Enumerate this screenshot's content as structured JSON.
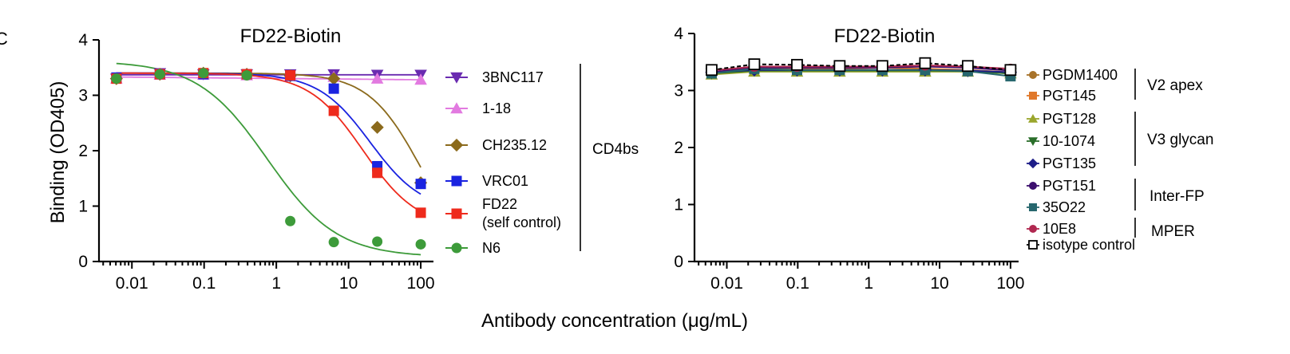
{
  "figure": {
    "panel_letter": "C",
    "shared_xlabel": "Antibody concentration (μg/mL)"
  },
  "chart_data": [
    {
      "type": "line",
      "title": "FD22-Biotin",
      "xlabel": "Antibody concentration (μg/mL)",
      "ylabel": "Binding (OD405)",
      "xscale": "log",
      "xlim": [
        0.0035,
        150
      ],
      "ylim": [
        0,
        4
      ],
      "xticks": [
        0.01,
        0.1,
        1,
        10,
        100
      ],
      "xtick_labels": [
        "0.01",
        "0.1",
        "1",
        "10",
        "100"
      ],
      "yticks": [
        0,
        1,
        2,
        3,
        4
      ],
      "ytick_labels": [
        "0",
        "1",
        "2",
        "3",
        "4"
      ],
      "x": [
        0.0061,
        0.0244,
        0.0977,
        0.39,
        1.56,
        6.25,
        25,
        100
      ],
      "legend_position": "right",
      "series": [
        {
          "name": "3BNC117",
          "color": "#6a2bb0",
          "marker": "triangle-down",
          "values": [
            3.3,
            3.4,
            3.38,
            3.38,
            3.38,
            3.38,
            3.37,
            3.37
          ],
          "fit": {
            "kind": "flat",
            "value": 3.37
          }
        },
        {
          "name": "1-18",
          "color": "#e27ae0",
          "marker": "triangle-up",
          "values": [
            3.3,
            3.37,
            3.37,
            3.36,
            3.35,
            3.33,
            3.3,
            3.28
          ],
          "fit": {
            "kind": "linear-log",
            "start": 3.33,
            "end": 3.28
          }
        },
        {
          "name": "CH235.12",
          "color": "#8b6a1c",
          "marker": "diamond",
          "values": [
            3.3,
            3.38,
            3.4,
            3.38,
            3.35,
            3.3,
            2.42,
            1.42
          ],
          "fit": {
            "kind": "hill",
            "top": 3.4,
            "bottom": 0,
            "ec50": 100,
            "hill": 1.2
          }
        },
        {
          "name": "VRC01",
          "color": "#1a23e0",
          "marker": "square",
          "values": [
            3.32,
            3.38,
            3.38,
            3.38,
            3.35,
            3.12,
            1.72,
            1.4
          ],
          "fit": {
            "kind": "hill",
            "top": 3.4,
            "bottom": 0.9,
            "ec50": 20,
            "hill": 1.2
          }
        },
        {
          "name": "FD22\n(self control)",
          "color": "#ee2a1c",
          "marker": "square",
          "values": [
            3.3,
            3.38,
            3.4,
            3.38,
            3.36,
            2.72,
            1.6,
            0.88
          ],
          "fit": {
            "kind": "hill",
            "top": 3.4,
            "bottom": 0.6,
            "ec50": 16,
            "hill": 1.15
          }
        },
        {
          "name": "N6",
          "color": "#3d9b3a",
          "marker": "circle",
          "values": [
            3.3,
            3.38,
            3.4,
            3.36,
            0.73,
            0.35,
            0.36,
            0.31
          ],
          "fit": {
            "kind": "hill",
            "top": 3.62,
            "bottom": 0.08,
            "ec50": 0.75,
            "hill": 0.9
          }
        }
      ],
      "groups": [
        {
          "label": "CD4bs",
          "members": [
            "3BNC117",
            "1-18",
            "CH235.12",
            "VRC01",
            "FD22\n(self control)",
            "N6"
          ]
        }
      ]
    },
    {
      "type": "line",
      "title": "FD22-Biotin",
      "xlabel": "Antibody concentration (μg/mL)",
      "ylabel": "",
      "xscale": "log",
      "xlim": [
        0.0035,
        130
      ],
      "ylim": [
        0,
        4
      ],
      "xticks": [
        0.01,
        0.1,
        1,
        10,
        100
      ],
      "xtick_labels": [
        "0.01",
        "0.1",
        "1",
        "10",
        "100"
      ],
      "yticks": [
        0,
        1,
        2,
        3,
        4
      ],
      "ytick_labels": [
        "0",
        "1",
        "2",
        "3",
        "4"
      ],
      "x": [
        0.0061,
        0.0244,
        0.0977,
        0.39,
        1.56,
        6.25,
        25,
        100
      ],
      "legend_position": "right",
      "series": [
        {
          "name": "PGDM1400",
          "color": "#a8732a",
          "marker": "circle",
          "values": [
            3.3,
            3.36,
            3.35,
            3.35,
            3.36,
            3.36,
            3.34,
            3.3
          ]
        },
        {
          "name": "PGT145",
          "color": "#e0782a",
          "marker": "square",
          "values": [
            3.3,
            3.4,
            3.38,
            3.38,
            3.4,
            3.38,
            3.36,
            3.32
          ]
        },
        {
          "name": "PGT128",
          "color": "#9aa62c",
          "marker": "triangle-up",
          "values": [
            3.28,
            3.33,
            3.33,
            3.33,
            3.33,
            3.33,
            3.33,
            3.3
          ]
        },
        {
          "name": "10-1074",
          "color": "#2a6e2a",
          "marker": "triangle-down",
          "values": [
            3.3,
            3.35,
            3.35,
            3.35,
            3.35,
            3.35,
            3.34,
            3.3
          ]
        },
        {
          "name": "PGT135",
          "color": "#1d1d88",
          "marker": "diamond",
          "values": [
            3.32,
            3.36,
            3.36,
            3.36,
            3.36,
            3.36,
            3.35,
            3.32
          ]
        },
        {
          "name": "PGT151",
          "color": "#3c0f6e",
          "marker": "circle",
          "values": [
            3.32,
            3.4,
            3.4,
            3.4,
            3.4,
            3.42,
            3.4,
            3.35
          ]
        },
        {
          "name": "35O22",
          "color": "#27676e",
          "marker": "square",
          "values": [
            3.3,
            3.38,
            3.36,
            3.36,
            3.36,
            3.36,
            3.34,
            3.25
          ]
        },
        {
          "name": "10E8",
          "color": "#b02850",
          "marker": "circle",
          "values": [
            3.35,
            3.42,
            3.42,
            3.42,
            3.42,
            3.44,
            3.42,
            3.38
          ]
        },
        {
          "name": "isotype control",
          "color": "#000000",
          "marker": "square-open",
          "values": [
            3.36,
            3.46,
            3.45,
            3.43,
            3.43,
            3.48,
            3.43,
            3.36
          ]
        }
      ],
      "groups": [
        {
          "label": "V2 apex",
          "members": [
            "PGDM1400",
            "PGT145"
          ]
        },
        {
          "label": "V3 glycan",
          "members": [
            "PGT128",
            "10-1074",
            "PGT135"
          ]
        },
        {
          "label": "Inter-FP",
          "members": [
            "PGT151",
            "35O22"
          ]
        },
        {
          "label": "MPER",
          "members": [
            "10E8"
          ]
        }
      ]
    }
  ]
}
